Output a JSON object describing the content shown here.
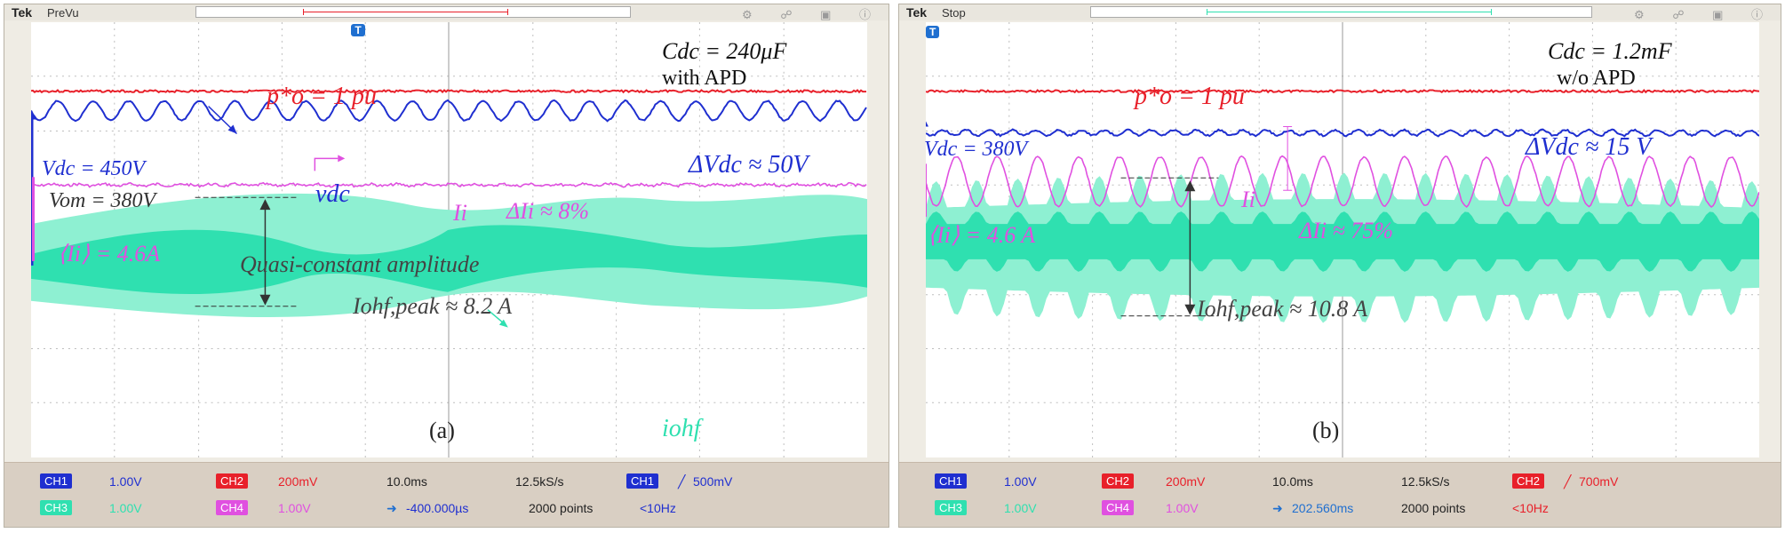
{
  "panel_a": {
    "brand": "Tek",
    "mode": "PreVu",
    "top_icons": "⚙ ☍ ▣ ⓘ",
    "trigger_marker": "T",
    "params_line1": "Cdc = 240μF",
    "params_line2": "with APD",
    "p_label": "p*o = 1 pu",
    "vdc_label": "Vdc = 450V",
    "vom_label": "Vom = 380V",
    "vdc_trace_label": "vdc",
    "delta_vdc": "ΔVdc ≈ 50V",
    "ii_label": "Ii",
    "delta_ii": "ΔIi ≈ 8%",
    "avg_ii": "⟨Ii⟩ = 4.6A",
    "quasi_label": "Quasi-constant amplitude",
    "iohf_peak": "Iohf,peak ≈ 8.2 A",
    "iohf_label": "iohf",
    "panel_tag": "(a)",
    "readout": {
      "ch1": "CH1",
      "ch1_val": "1.00V",
      "ch2": "CH2",
      "ch2_val": "200mV",
      "ch3": "CH3",
      "ch3_val": "1.00V",
      "ch4": "CH4",
      "ch4_val": "1.00V",
      "timebase": "10.0ms",
      "rate": "12.5kS/s",
      "trig_ch": "CH1",
      "trig_level": "500mV",
      "offset": "-400.000µs",
      "points": "2000 points",
      "freq": "<10Hz"
    }
  },
  "panel_b": {
    "brand": "Tek",
    "mode": "Stop",
    "top_icons": "⚙ ☍ ▣ ⓘ",
    "trigger_marker": "T",
    "params_line1": "Cdc = 1.2mF",
    "params_line2": "w/o APD",
    "p_label": "p*o = 1 pu",
    "vdc_label": "Vdc = 380V",
    "delta_vdc": "ΔVdc ≈ 15 V",
    "ii_label": "Ii",
    "delta_ii": "ΔIi ≈ 75%",
    "avg_ii": "⟨Ii⟩ = 4.6 A",
    "iohf_peak": "Iohf,peak ≈ 10.8 A",
    "panel_tag": "(b)",
    "readout": {
      "ch1": "CH1",
      "ch1_val": "1.00V",
      "ch2": "CH2",
      "ch2_val": "200mV",
      "ch3": "CH3",
      "ch3_val": "1.00V",
      "ch4": "CH4",
      "ch4_val": "1.00V",
      "timebase": "10.0ms",
      "rate": "12.5kS/s",
      "trig_ch": "CH2",
      "trig_level": "700mV",
      "offset": "202.560ms",
      "points": "2000 points",
      "freq": "<10Hz"
    }
  },
  "colors": {
    "ch1": "#1f2fd0",
    "ch2": "#e8202a",
    "ch3": "#2fe0b0",
    "ch4": "#e050e0",
    "annotation_dark": "#333333"
  }
}
